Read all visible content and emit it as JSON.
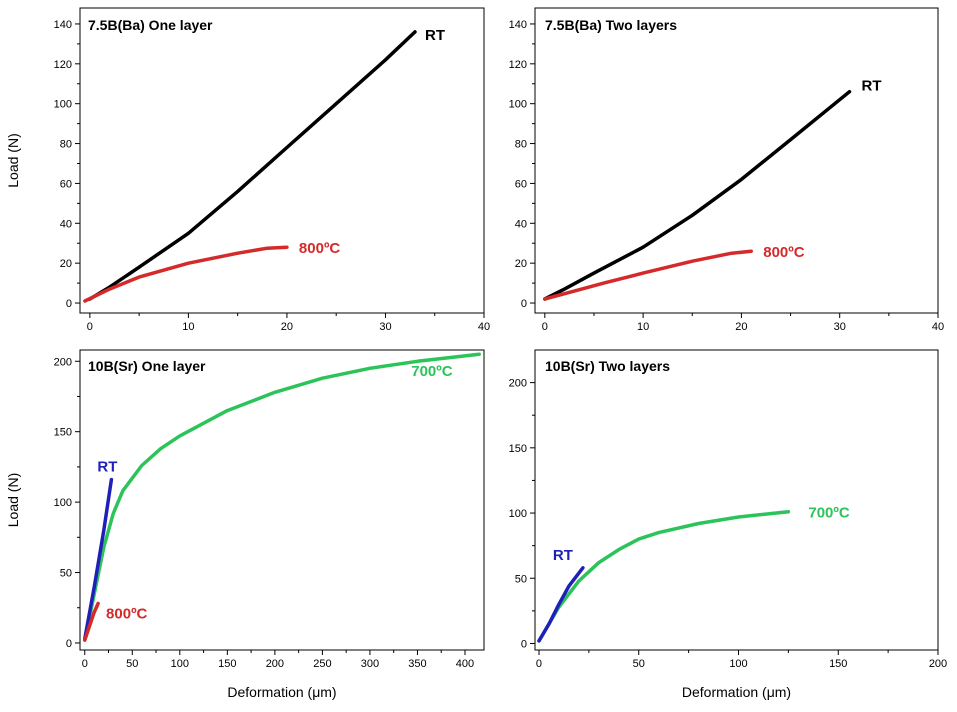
{
  "chart_data": [
    {
      "type": "line",
      "title": "7.5B(Ba) One layer",
      "ylabel": "Load (N)",
      "xlabel": "",
      "xlim": [
        -1,
        40
      ],
      "ylim": [
        -5,
        148
      ],
      "xticks": [
        "0",
        "10",
        "20",
        "30",
        "40"
      ],
      "yticks": [
        "0",
        "20",
        "40",
        "60",
        "80",
        "100",
        "120",
        "140"
      ],
      "series": [
        {
          "name": "RT",
          "color": "#000000",
          "label": "RT",
          "x": [
            0,
            2,
            5,
            10,
            15,
            20,
            25,
            30,
            33
          ],
          "y": [
            2,
            8,
            18,
            35,
            56,
            78,
            100,
            122,
            136
          ]
        },
        {
          "name": "800°C",
          "color": "#d42a2a",
          "label": "800ºC",
          "x": [
            -0.5,
            2,
            5,
            10,
            15,
            18,
            20
          ],
          "y": [
            1,
            7,
            13,
            20,
            25,
            27.5,
            28
          ]
        }
      ]
    },
    {
      "type": "line",
      "title": "7.5B(Ba) Two layers",
      "ylabel": "",
      "xlabel": "",
      "xlim": [
        -1,
        40
      ],
      "ylim": [
        -5,
        148
      ],
      "xticks": [
        "0",
        "10",
        "20",
        "30",
        "40"
      ],
      "yticks": [
        "0",
        "20",
        "40",
        "60",
        "80",
        "100",
        "120",
        "140"
      ],
      "series": [
        {
          "name": "RT",
          "color": "#000000",
          "label": "RT",
          "x": [
            0,
            2,
            5,
            10,
            15,
            20,
            25,
            31
          ],
          "y": [
            2,
            7,
            15,
            28,
            44,
            62,
            82,
            106
          ]
        },
        {
          "name": "800°C",
          "color": "#d42a2a",
          "label": "800ºC",
          "x": [
            0,
            3,
            6,
            10,
            15,
            19,
            21
          ],
          "y": [
            2,
            6,
            10,
            15,
            21,
            25,
            26
          ]
        }
      ]
    },
    {
      "type": "line",
      "title": "10B(Sr) One layer",
      "ylabel": "Load (N)",
      "xlabel": "Deformation (μm)",
      "xlim": [
        -5,
        420
      ],
      "ylim": [
        -5,
        208
      ],
      "xticks": [
        "0",
        "50",
        "100",
        "150",
        "200",
        "250",
        "300",
        "350",
        "400"
      ],
      "yticks": [
        "0",
        "50",
        "100",
        "150",
        "200"
      ],
      "series": [
        {
          "name": "700°C",
          "color": "#2cc45a",
          "label": "700ºC",
          "x": [
            0,
            10,
            20,
            30,
            40,
            60,
            80,
            100,
            150,
            200,
            250,
            300,
            350,
            415
          ],
          "y": [
            2,
            35,
            68,
            92,
            108,
            126,
            138,
            147,
            165,
            178,
            188,
            195,
            200,
            205
          ]
        },
        {
          "name": "RT",
          "color": "#2020b8",
          "label": "RT",
          "x": [
            0,
            10,
            20,
            28
          ],
          "y": [
            3,
            40,
            80,
            116
          ]
        },
        {
          "name": "800°C",
          "color": "#d42a2a",
          "label": "800ºC",
          "x": [
            0,
            5,
            10,
            14
          ],
          "y": [
            2,
            12,
            22,
            28
          ]
        }
      ]
    },
    {
      "type": "line",
      "title": "10B(Sr) Two layers",
      "ylabel": "",
      "xlabel": "Deformation (μm)",
      "xlim": [
        -2,
        200
      ],
      "ylim": [
        -5,
        225
      ],
      "xticks": [
        "0",
        "50",
        "100",
        "150",
        "200"
      ],
      "yticks": [
        "0",
        "50",
        "100",
        "150",
        "200"
      ],
      "series": [
        {
          "name": "700°C",
          "color": "#2cc45a",
          "label": "700ºC",
          "x": [
            0,
            5,
            10,
            20,
            30,
            40,
            50,
            60,
            80,
            100,
            125
          ],
          "y": [
            2,
            15,
            28,
            48,
            62,
            72,
            80,
            85,
            92,
            97,
            101
          ]
        },
        {
          "name": "RT",
          "color": "#2020b8",
          "label": "RT",
          "x": [
            0,
            5,
            10,
            15,
            22
          ],
          "y": [
            2,
            15,
            30,
            44,
            58
          ]
        }
      ]
    }
  ]
}
